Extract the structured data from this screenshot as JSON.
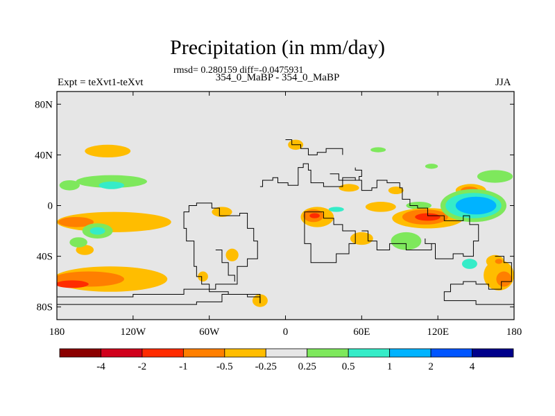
{
  "header": {
    "title": "Precipitation (in mm/day)",
    "subtitle": "rmsd= 0.280159 diff=-0.0475931",
    "left_label": "Expt = teXvt1-teXvt",
    "center_label": "354_0_MaBP - 354_0_MaBP",
    "right_label": "JJA"
  },
  "chart_data": {
    "type": "heatmap",
    "title": "Precipitation (in mm/day)",
    "xlim": [
      -180,
      180
    ],
    "ylim": [
      -90,
      90
    ],
    "x_ticks": [
      -180,
      -120,
      -60,
      0,
      60,
      120,
      180
    ],
    "x_tick_labels": [
      "180",
      "120W",
      "60W",
      "0",
      "60E",
      "120E",
      "180"
    ],
    "y_ticks": [
      80,
      40,
      0,
      -40,
      -80
    ],
    "y_tick_labels": [
      "80N",
      "40N",
      "0",
      "40S",
      "80S"
    ],
    "colorbar": {
      "levels": [
        "-4",
        "-2",
        "-1",
        "-0.5",
        "-0.25",
        "0.25",
        "0.5",
        "1",
        "2",
        "4"
      ],
      "colors": [
        "#8b0000",
        "#d0001c",
        "#ff2b00",
        "#ff7f00",
        "#ffbd00",
        "#e6e6e6",
        "#7ee85c",
        "#35ecc8",
        "#00b3ff",
        "#0055ff",
        "#00008b"
      ]
    },
    "background_color": "#e6e6e6",
    "anomaly_regions": [
      {
        "level": -0.5,
        "cx": -140,
        "cy": 43,
        "rx": 18,
        "ry": 5
      },
      {
        "level": 0.5,
        "cx": -137,
        "cy": 19,
        "rx": 28,
        "ry": 5
      },
      {
        "level": 0.5,
        "cx": -170,
        "cy": 16,
        "rx": 8,
        "ry": 4
      },
      {
        "level": 1,
        "cx": -137,
        "cy": 16,
        "rx": 10,
        "ry": 3
      },
      {
        "level": -0.5,
        "cx": -135,
        "cy": -13,
        "rx": 45,
        "ry": 8
      },
      {
        "level": -1,
        "cx": -165,
        "cy": -13,
        "rx": 14,
        "ry": 4
      },
      {
        "level": 0.5,
        "cx": -148,
        "cy": -20,
        "rx": 12,
        "ry": 6
      },
      {
        "level": 1,
        "cx": -148,
        "cy": -20,
        "rx": 6,
        "ry": 3
      },
      {
        "level": -0.5,
        "cx": -158,
        "cy": -35,
        "rx": 7,
        "ry": 4
      },
      {
        "level": 0.5,
        "cx": -163,
        "cy": -29,
        "rx": 7,
        "ry": 4
      },
      {
        "level": -0.5,
        "cx": -138,
        "cy": -58,
        "rx": 45,
        "ry": 10
      },
      {
        "level": -1,
        "cx": -155,
        "cy": -58,
        "rx": 28,
        "ry": 6
      },
      {
        "level": -2,
        "cx": -168,
        "cy": -62,
        "rx": 13,
        "ry": 3
      },
      {
        "level": -0.5,
        "cx": -50,
        "cy": -5,
        "rx": 8,
        "ry": 4
      },
      {
        "level": -0.5,
        "cx": -42,
        "cy": -39,
        "rx": 5,
        "ry": 5
      },
      {
        "level": -0.5,
        "cx": -65,
        "cy": -56,
        "rx": 4,
        "ry": 4
      },
      {
        "level": -0.5,
        "cx": -20,
        "cy": -75,
        "rx": 6,
        "ry": 5
      },
      {
        "level": -0.5,
        "cx": 8,
        "cy": 48,
        "rx": 6,
        "ry": 4
      },
      {
        "level": 0.5,
        "cx": 73,
        "cy": 44,
        "rx": 6,
        "ry": 2
      },
      {
        "level": 0.5,
        "cx": 115,
        "cy": 31,
        "rx": 5,
        "ry": 2
      },
      {
        "level": -0.5,
        "cx": 25,
        "cy": -9,
        "rx": 13,
        "ry": 8
      },
      {
        "level": -1,
        "cx": 22,
        "cy": -8,
        "rx": 8,
        "ry": 5
      },
      {
        "level": -2,
        "cx": 23,
        "cy": -8,
        "rx": 4,
        "ry": 2
      },
      {
        "level": 1,
        "cx": 40,
        "cy": -3,
        "rx": 6,
        "ry": 2
      },
      {
        "level": -0.5,
        "cx": 50,
        "cy": 14,
        "rx": 8,
        "ry": 3
      },
      {
        "level": -0.5,
        "cx": 87,
        "cy": 12,
        "rx": 6,
        "ry": 3
      },
      {
        "level": 0.5,
        "cx": 105,
        "cy": 0,
        "rx": 10,
        "ry": 3
      },
      {
        "level": -0.5,
        "cx": 75,
        "cy": -1,
        "rx": 12,
        "ry": 4
      },
      {
        "level": -0.5,
        "cx": 112,
        "cy": -10,
        "rx": 28,
        "ry": 8
      },
      {
        "level": -1,
        "cx": 110,
        "cy": -9,
        "rx": 18,
        "ry": 6
      },
      {
        "level": -2,
        "cx": 112,
        "cy": -9,
        "rx": 10,
        "ry": 3
      },
      {
        "level": -0.5,
        "cx": 146,
        "cy": 12,
        "rx": 12,
        "ry": 5
      },
      {
        "level": -1,
        "cx": 145,
        "cy": 12,
        "rx": 7,
        "ry": 3
      },
      {
        "level": 0.5,
        "cx": 165,
        "cy": 23,
        "rx": 14,
        "ry": 5
      },
      {
        "level": 0.5,
        "cx": 148,
        "cy": 0,
        "rx": 26,
        "ry": 13
      },
      {
        "level": 1,
        "cx": 148,
        "cy": 0,
        "rx": 22,
        "ry": 10
      },
      {
        "level": 2,
        "cx": 150,
        "cy": 0,
        "rx": 16,
        "ry": 7
      },
      {
        "level": 0.5,
        "cx": 95,
        "cy": -28,
        "rx": 12,
        "ry": 7
      },
      {
        "level": -0.5,
        "cx": 60,
        "cy": -26,
        "rx": 9,
        "ry": 5
      },
      {
        "level": -0.5,
        "cx": 168,
        "cy": -55,
        "rx": 12,
        "ry": 12
      },
      {
        "level": -1,
        "cx": 172,
        "cy": -58,
        "rx": 6,
        "ry": 6
      },
      {
        "level": 1,
        "cx": 145,
        "cy": -46,
        "rx": 6,
        "ry": 4
      },
      {
        "level": -0.5,
        "cx": 165,
        "cy": -44,
        "rx": 7,
        "ry": 5
      },
      {
        "level": -1,
        "cx": 168,
        "cy": -44,
        "rx": 3,
        "ry": 2
      }
    ],
    "coastlines": [
      [
        [
          -20,
          -77
        ],
        [
          -20,
          -70
        ],
        [
          -45,
          -68
        ],
        [
          -60,
          -62
        ],
        [
          -66,
          -56
        ],
        [
          -70,
          -48
        ],
        [
          -72,
          -28
        ],
        [
          -78,
          -18
        ],
        [
          -80,
          -5
        ],
        [
          -76,
          0
        ],
        [
          -70,
          2
        ],
        [
          -58,
          -2
        ],
        [
          -52,
          -8
        ],
        [
          -36,
          -6
        ],
        [
          -30,
          -18
        ],
        [
          -25,
          -28
        ],
        [
          -22,
          -42
        ],
        [
          -30,
          -48
        ],
        [
          -38,
          -62
        ],
        [
          -55,
          -66
        ],
        [
          -80,
          -70
        ],
        [
          -120,
          -72
        ],
        [
          -160,
          -72
        ],
        [
          -180,
          -70
        ]
      ],
      [
        [
          -180,
          -78
        ],
        [
          -110,
          -78
        ],
        [
          -70,
          -76
        ],
        [
          -50,
          -70
        ],
        [
          -30,
          -72
        ],
        [
          -20,
          -77
        ]
      ],
      [
        [
          -20,
          15
        ],
        [
          -18,
          20
        ],
        [
          -10,
          22
        ],
        [
          -6,
          18
        ],
        [
          2,
          16
        ],
        [
          10,
          18
        ],
        [
          10,
          30
        ],
        [
          14,
          33
        ],
        [
          18,
          28
        ],
        [
          20,
          18
        ],
        [
          30,
          15
        ],
        [
          45,
          22
        ],
        [
          55,
          20
        ],
        [
          60,
          12
        ],
        [
          68,
          14
        ],
        [
          72,
          20
        ],
        [
          80,
          18
        ],
        [
          90,
          14
        ],
        [
          92,
          5
        ],
        [
          98,
          0
        ],
        [
          104,
          -2
        ],
        [
          112,
          -8
        ],
        [
          125,
          -12
        ],
        [
          135,
          -12
        ],
        [
          140,
          -8
        ],
        [
          145,
          -15
        ],
        [
          152,
          -28
        ],
        [
          148,
          -40
        ],
        [
          140,
          -38
        ],
        [
          132,
          -42
        ],
        [
          120,
          -42
        ],
        [
          118,
          -30
        ],
        [
          110,
          -26
        ]
      ],
      [
        [
          15,
          -13
        ],
        [
          15,
          -30
        ],
        [
          20,
          -45
        ],
        [
          35,
          -45
        ],
        [
          40,
          -38
        ],
        [
          50,
          -30
        ],
        [
          55,
          -20
        ],
        [
          45,
          -15
        ],
        [
          38,
          -10
        ],
        [
          30,
          -5
        ],
        [
          20,
          -5
        ],
        [
          15,
          -13
        ]
      ],
      [
        [
          60,
          -20
        ],
        [
          65,
          -28
        ],
        [
          72,
          -35
        ],
        [
          82,
          -30
        ],
        [
          95,
          -35
        ],
        [
          110,
          -35
        ],
        [
          115,
          -30
        ]
      ],
      [
        [
          165,
          -40
        ],
        [
          172,
          -45
        ],
        [
          178,
          -50
        ],
        [
          178,
          -60
        ],
        [
          170,
          -66
        ],
        [
          160,
          -62
        ],
        [
          150,
          -60
        ],
        [
          140,
          -62
        ],
        [
          130,
          -68
        ],
        [
          125,
          -75
        ],
        [
          150,
          -78
        ],
        [
          180,
          -80
        ]
      ],
      [
        [
          0,
          52
        ],
        [
          5,
          48
        ],
        [
          12,
          45
        ],
        [
          18,
          40
        ],
        [
          25,
          42
        ],
        [
          32,
          45
        ],
        [
          40,
          45
        ],
        [
          45,
          40
        ]
      ],
      [
        [
          35,
          25
        ],
        [
          42,
          20
        ],
        [
          50,
          20
        ],
        [
          58,
          23
        ],
        [
          60,
          28
        ],
        [
          55,
          30
        ]
      ],
      [
        [
          -55,
          -35
        ],
        [
          -50,
          -45
        ],
        [
          -45,
          -55
        ],
        [
          -40,
          -60
        ]
      ]
    ]
  }
}
